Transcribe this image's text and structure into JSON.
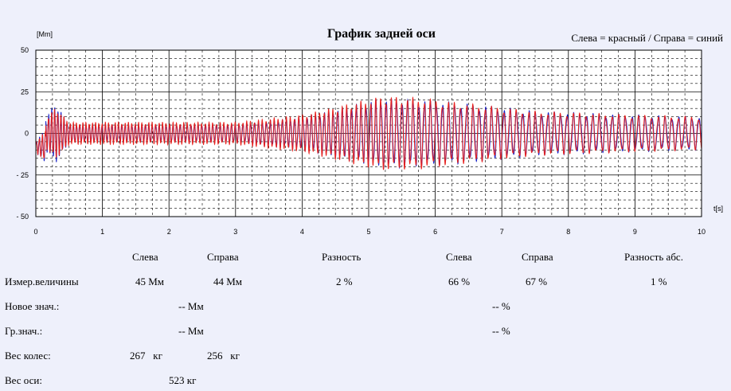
{
  "chart_data": {
    "type": "line",
    "title": "График задней оси",
    "legend": "Слева = красный / Справа = синий",
    "ylabel": "[Mm]",
    "xlabel": "t[s]",
    "xlim": [
      0,
      10
    ],
    "ylim": [
      -50,
      50
    ],
    "x_ticks": [
      "0",
      "1",
      "2",
      "3",
      "4",
      "5",
      "6",
      "7",
      "8",
      "9",
      "10"
    ],
    "y_ticks": [
      {
        "value": 50,
        "label": "50"
      },
      {
        "value": 25,
        "label": "25"
      },
      {
        "value": 0,
        "label": "0"
      },
      {
        "value": -25,
        "label": "- 25"
      },
      {
        "value": -50,
        "label": "- 50"
      }
    ],
    "grid": true,
    "series": [
      {
        "name": "Слева",
        "color": "#e8201c",
        "envelope": [
          [
            0,
            3
          ],
          [
            0.3,
            14
          ],
          [
            0.5,
            6
          ],
          [
            3.0,
            6
          ],
          [
            4.0,
            10
          ],
          [
            5.2,
            20
          ],
          [
            5.8,
            19
          ],
          [
            6.5,
            16
          ],
          [
            7.5,
            12
          ],
          [
            9.0,
            10
          ],
          [
            10,
            9
          ]
        ]
      },
      {
        "name": "Справа",
        "color": "#1a23c8",
        "envelope": [
          [
            0,
            3
          ],
          [
            0.3,
            16
          ],
          [
            0.5,
            5
          ],
          [
            3.0,
            5
          ],
          [
            4.0,
            9
          ],
          [
            5.2,
            19
          ],
          [
            5.8,
            18
          ],
          [
            6.5,
            16
          ],
          [
            7.5,
            12
          ],
          [
            9.0,
            10
          ],
          [
            10,
            9
          ]
        ]
      }
    ]
  },
  "table": {
    "headers": [
      "Слева",
      "Справа",
      "Разность",
      "Слева",
      "Справа",
      "Разность абс."
    ],
    "rows": {
      "measured": {
        "label": "Измер.величины",
        "left": "45 Мм",
        "right": "44 Мм",
        "diff": "2 %",
        "left_pct": "66 %",
        "right_pct": "67 %",
        "abs_diff": "1 %"
      },
      "new_value": {
        "label": "Новое знач.:",
        "mm": "-- Мм",
        "pct": "-- %"
      },
      "limit_value": {
        "label": "Гр.знач.:",
        "mm": "-- Мм",
        "pct": "-- %"
      },
      "wheel_weight": {
        "label": "Вес колес:",
        "left": "267   кг",
        "right": "256   кг"
      },
      "axle_weight": {
        "label": "Вес оси:",
        "value": "523 кг"
      }
    }
  }
}
